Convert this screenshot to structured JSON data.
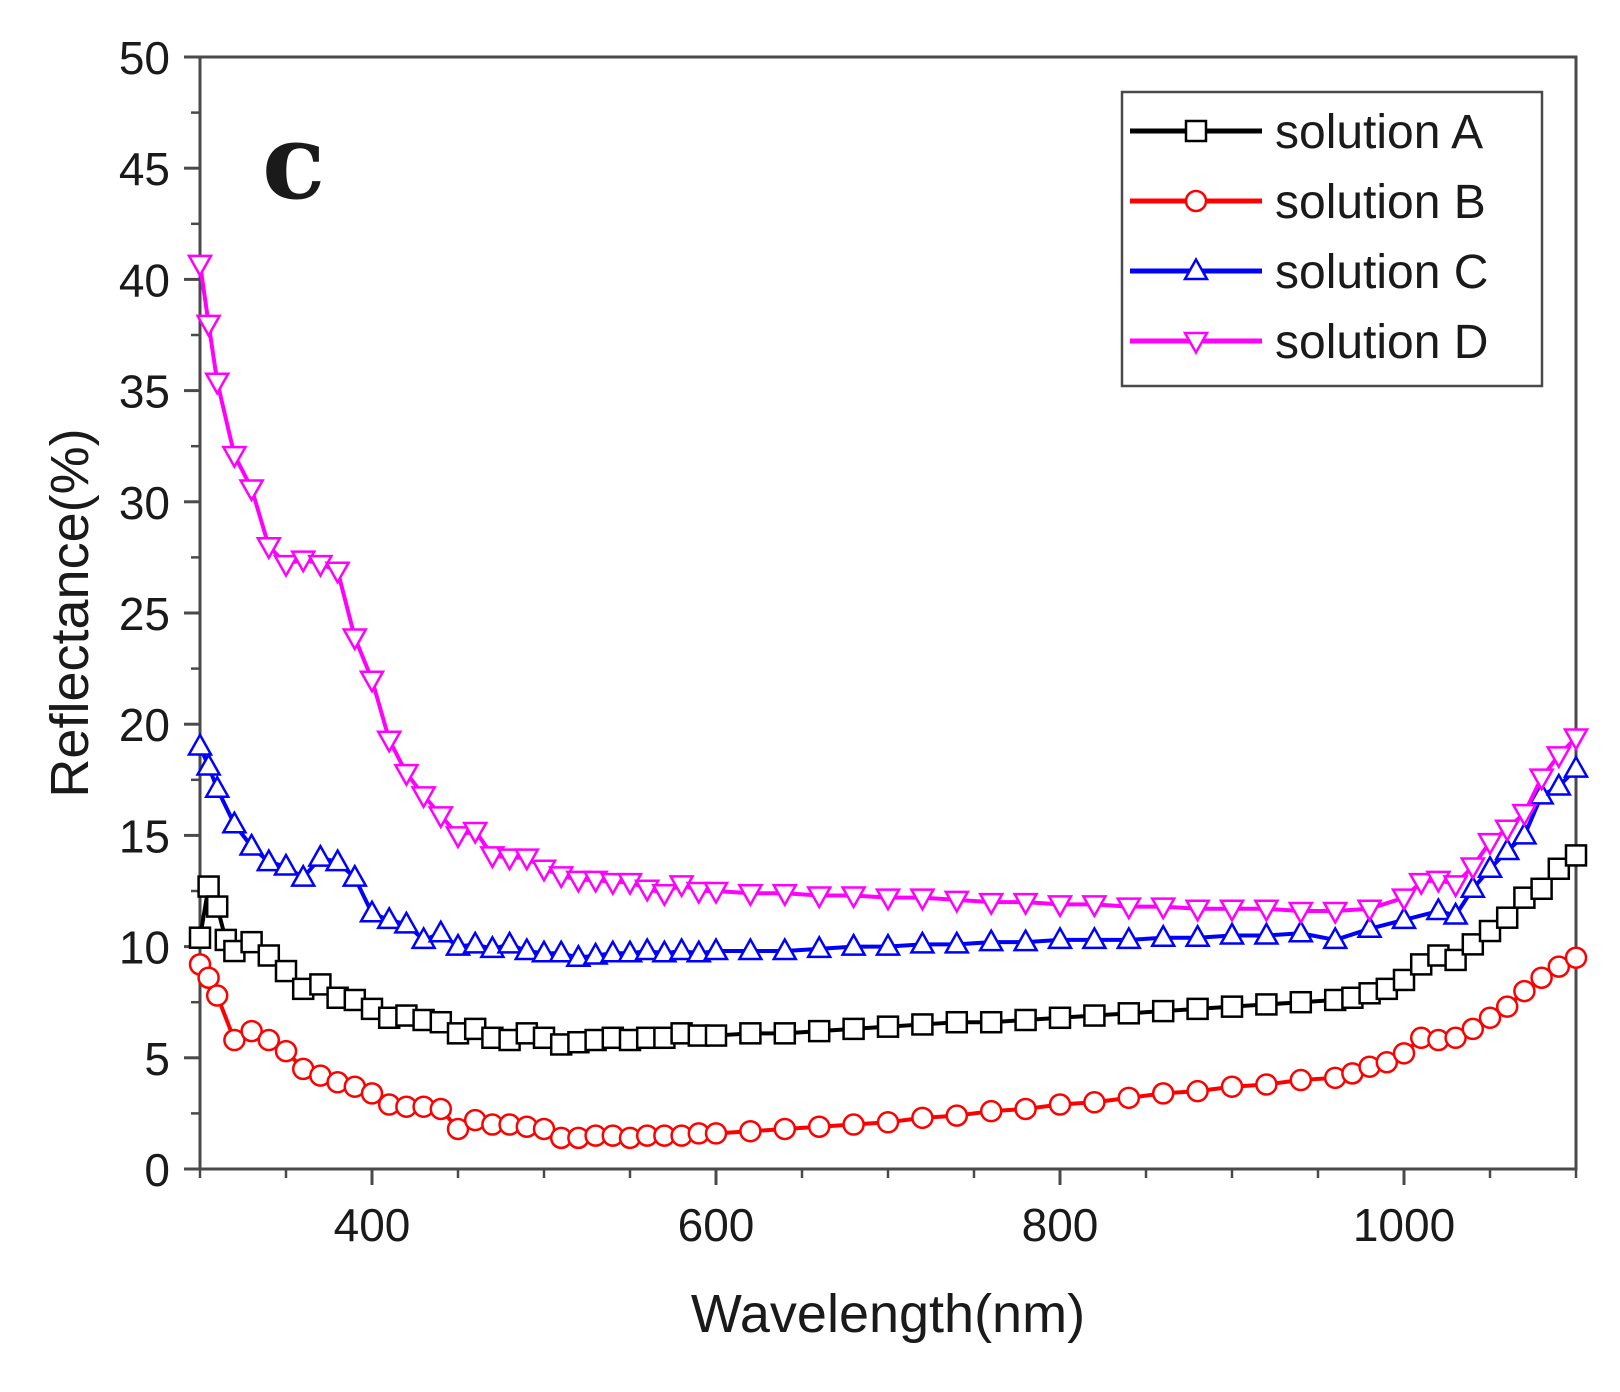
{
  "chart_data": {
    "type": "line",
    "panel_label": "c",
    "xlabel": "Wavelength(nm)",
    "ylabel": "Reflectance(%)",
    "xlim": [
      300,
      1100
    ],
    "ylim": [
      0,
      50
    ],
    "xticks": [
      400,
      600,
      800,
      1000
    ],
    "yticks": [
      0,
      5,
      10,
      15,
      20,
      25,
      30,
      35,
      40,
      45,
      50
    ],
    "legend_position": "top-right",
    "grid": false,
    "series": [
      {
        "name": "solution A",
        "color": "#000000",
        "marker": "square",
        "x": [
          300,
          305,
          310,
          315,
          320,
          330,
          340,
          350,
          360,
          370,
          380,
          390,
          400,
          410,
          420,
          430,
          440,
          450,
          460,
          470,
          480,
          490,
          500,
          510,
          520,
          530,
          540,
          550,
          560,
          570,
          580,
          590,
          600,
          620,
          640,
          660,
          680,
          700,
          720,
          740,
          760,
          780,
          800,
          820,
          840,
          860,
          880,
          900,
          920,
          940,
          960,
          970,
          980,
          990,
          1000,
          1010,
          1020,
          1030,
          1040,
          1050,
          1060,
          1070,
          1080,
          1090,
          1100
        ],
        "y": [
          10.4,
          12.7,
          11.8,
          10.3,
          9.8,
          10.2,
          9.6,
          8.9,
          8.1,
          8.3,
          7.7,
          7.6,
          7.2,
          6.8,
          6.9,
          6.7,
          6.6,
          6.1,
          6.3,
          5.9,
          5.8,
          6.1,
          5.9,
          5.6,
          5.7,
          5.8,
          5.9,
          5.8,
          5.9,
          5.9,
          6.1,
          6.0,
          6.0,
          6.1,
          6.1,
          6.2,
          6.3,
          6.4,
          6.5,
          6.6,
          6.6,
          6.7,
          6.8,
          6.9,
          7.0,
          7.1,
          7.2,
          7.3,
          7.4,
          7.5,
          7.6,
          7.7,
          7.9,
          8.1,
          8.5,
          9.2,
          9.6,
          9.4,
          10.1,
          10.7,
          11.3,
          12.2,
          12.6,
          13.5,
          14.1
        ]
      },
      {
        "name": "solution B",
        "color": "#ff0000",
        "marker": "circle",
        "x": [
          300,
          305,
          310,
          320,
          330,
          340,
          350,
          360,
          370,
          380,
          390,
          400,
          410,
          420,
          430,
          440,
          450,
          460,
          470,
          480,
          490,
          500,
          510,
          520,
          530,
          540,
          550,
          560,
          570,
          580,
          590,
          600,
          620,
          640,
          660,
          680,
          700,
          720,
          740,
          760,
          780,
          800,
          820,
          840,
          860,
          880,
          900,
          920,
          940,
          960,
          970,
          980,
          990,
          1000,
          1010,
          1020,
          1030,
          1040,
          1050,
          1060,
          1070,
          1080,
          1090,
          1100
        ],
        "y": [
          9.2,
          8.6,
          7.8,
          5.8,
          6.2,
          5.8,
          5.3,
          4.5,
          4.2,
          3.9,
          3.7,
          3.4,
          2.9,
          2.8,
          2.8,
          2.7,
          1.8,
          2.2,
          2.0,
          2.0,
          1.9,
          1.8,
          1.4,
          1.4,
          1.5,
          1.5,
          1.4,
          1.5,
          1.5,
          1.5,
          1.6,
          1.6,
          1.7,
          1.8,
          1.9,
          2.0,
          2.1,
          2.3,
          2.4,
          2.6,
          2.7,
          2.9,
          3.0,
          3.2,
          3.4,
          3.5,
          3.7,
          3.8,
          4.0,
          4.1,
          4.3,
          4.6,
          4.8,
          5.2,
          5.9,
          5.8,
          5.9,
          6.3,
          6.8,
          7.3,
          8.0,
          8.6,
          9.1,
          9.5
        ]
      },
      {
        "name": "solution C",
        "color": "#0000ff",
        "marker": "triangle-up",
        "x": [
          300,
          305,
          310,
          320,
          330,
          340,
          350,
          360,
          370,
          380,
          390,
          400,
          410,
          420,
          430,
          440,
          450,
          460,
          470,
          480,
          490,
          500,
          510,
          520,
          530,
          540,
          550,
          560,
          570,
          580,
          590,
          600,
          620,
          640,
          660,
          680,
          700,
          720,
          740,
          760,
          780,
          800,
          820,
          840,
          860,
          880,
          900,
          920,
          940,
          960,
          980,
          1000,
          1020,
          1030,
          1040,
          1050,
          1060,
          1070,
          1080,
          1090,
          1100
        ],
        "y": [
          19.0,
          18.1,
          17.1,
          15.5,
          14.5,
          13.8,
          13.6,
          13.1,
          14.0,
          13.8,
          13.1,
          11.5,
          11.2,
          11.0,
          10.3,
          10.6,
          10.0,
          10.1,
          9.9,
          10.1,
          9.8,
          9.7,
          9.7,
          9.5,
          9.6,
          9.7,
          9.7,
          9.8,
          9.7,
          9.8,
          9.7,
          9.8,
          9.8,
          9.8,
          9.9,
          10.0,
          10.0,
          10.1,
          10.1,
          10.2,
          10.2,
          10.3,
          10.3,
          10.3,
          10.4,
          10.4,
          10.5,
          10.5,
          10.6,
          10.3,
          10.8,
          11.2,
          11.6,
          11.4,
          12.6,
          13.5,
          14.3,
          15.0,
          16.8,
          17.2,
          18.0
        ]
      },
      {
        "name": "solution D",
        "color": "#ff00ff",
        "marker": "triangle-down",
        "x": [
          300,
          305,
          310,
          320,
          330,
          340,
          350,
          360,
          370,
          380,
          390,
          400,
          410,
          420,
          430,
          440,
          450,
          460,
          470,
          480,
          490,
          500,
          510,
          520,
          530,
          540,
          550,
          560,
          570,
          580,
          590,
          600,
          620,
          640,
          660,
          680,
          700,
          720,
          740,
          760,
          780,
          800,
          820,
          840,
          860,
          880,
          900,
          920,
          940,
          960,
          980,
          1000,
          1010,
          1020,
          1030,
          1040,
          1050,
          1060,
          1070,
          1080,
          1090,
          1100
        ],
        "y": [
          40.7,
          38.0,
          35.4,
          32.1,
          30.6,
          28.0,
          27.2,
          27.4,
          27.2,
          26.9,
          23.9,
          22.0,
          19.3,
          17.8,
          16.8,
          15.9,
          15.0,
          15.2,
          14.1,
          14.0,
          14.0,
          13.5,
          13.2,
          13.0,
          13.0,
          12.9,
          12.9,
          12.6,
          12.4,
          12.8,
          12.5,
          12.5,
          12.4,
          12.4,
          12.3,
          12.3,
          12.2,
          12.2,
          12.1,
          12.0,
          12.0,
          11.9,
          11.9,
          11.8,
          11.8,
          11.7,
          11.7,
          11.7,
          11.6,
          11.6,
          11.7,
          12.2,
          12.9,
          13.0,
          12.8,
          13.6,
          14.7,
          15.3,
          16.0,
          17.6,
          18.6,
          19.4
        ]
      }
    ]
  }
}
